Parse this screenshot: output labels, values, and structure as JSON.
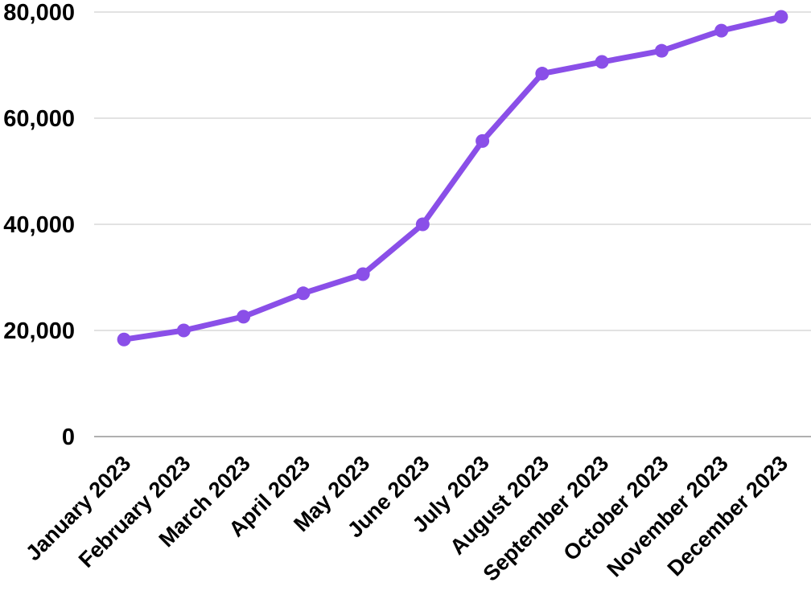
{
  "chart_data": {
    "type": "line",
    "categories": [
      "January 2023",
      "February 2023",
      "March 2023",
      "April 2023",
      "May 2023",
      "June 2023",
      "July 2023",
      "August 2023",
      "September 2023",
      "October 2023",
      "November 2023",
      "December 2023"
    ],
    "values": [
      18300,
      20000,
      22600,
      27000,
      30600,
      40000,
      55700,
      68400,
      70600,
      72700,
      76500,
      79100
    ],
    "y_ticks": [
      0,
      20000,
      40000,
      60000,
      80000
    ],
    "y_tick_labels": [
      "0",
      "20,000",
      "40,000",
      "60,000",
      "80,000"
    ],
    "ylim": [
      0,
      80000
    ],
    "grid": true,
    "legend": "none",
    "line_color": "#8a4fe8",
    "marker_color": "#8a4fe8",
    "grid_color": "#d9d9d9",
    "axis_line_color": "#b0b0b0",
    "label_color": "#000000",
    "background_color": "#ffffff"
  }
}
